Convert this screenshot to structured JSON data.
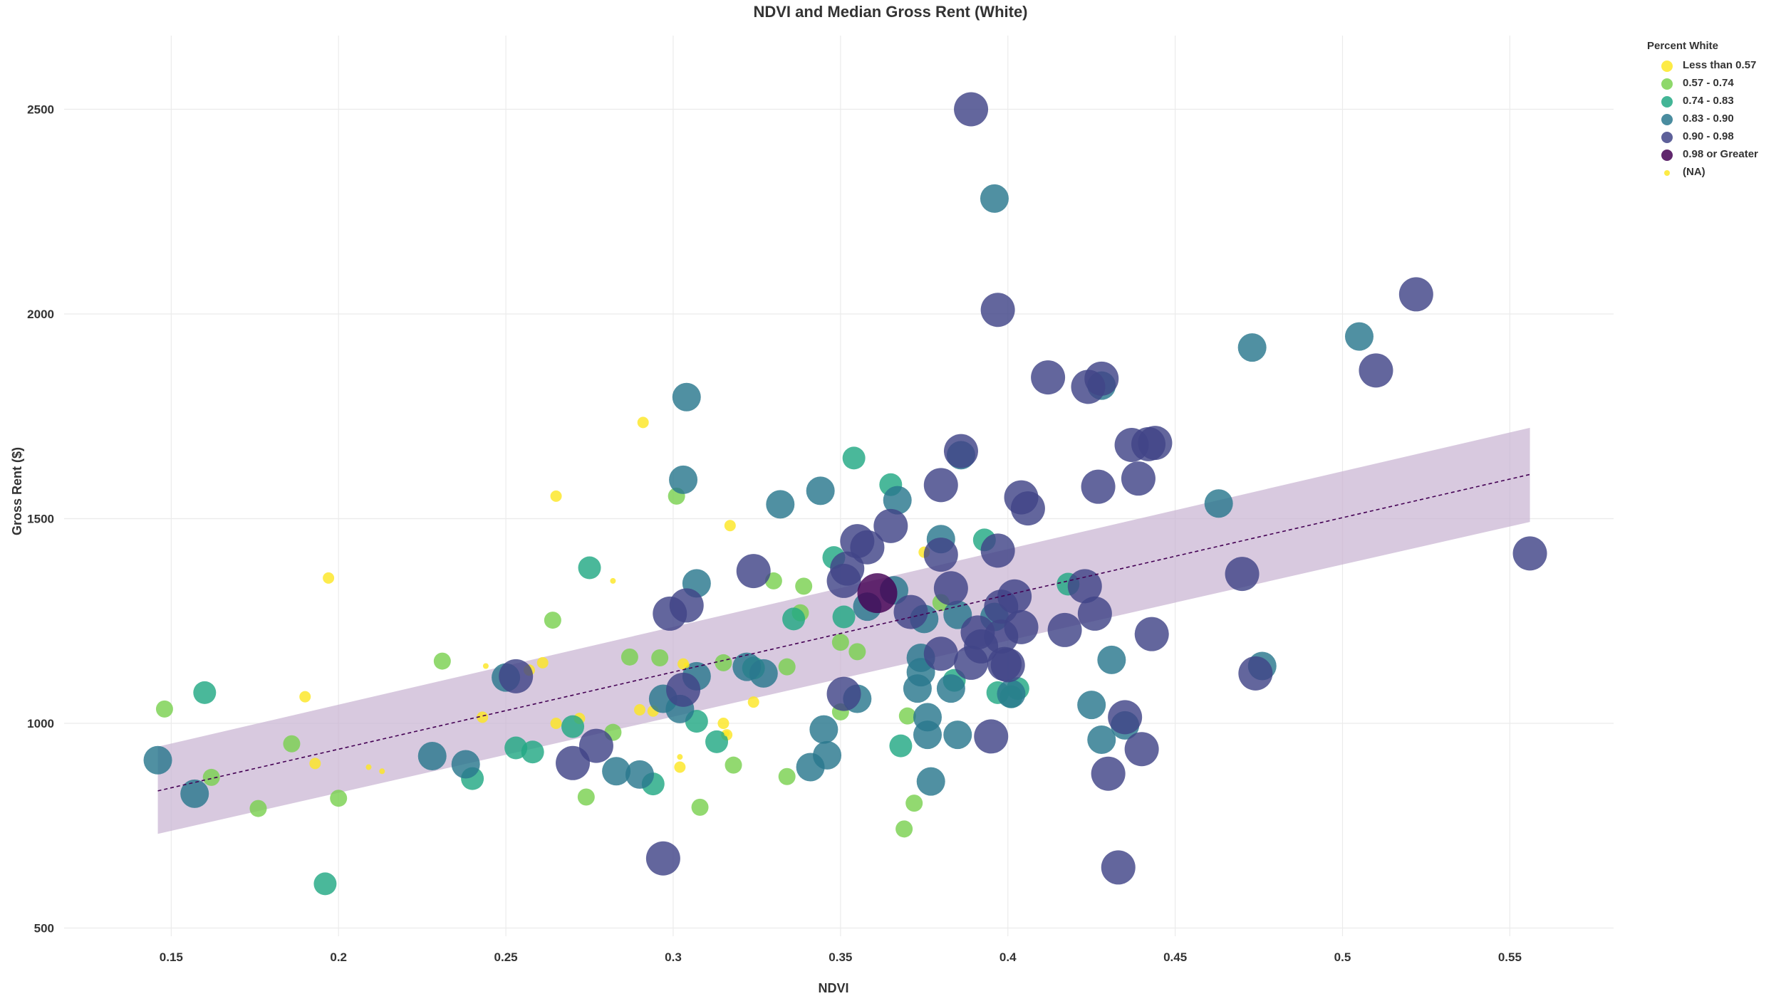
{
  "chart_data": {
    "type": "scatter",
    "title": "NDVI and Median Gross Rent (White)",
    "xlabel": "NDVI",
    "ylabel": "Gross Rent ($)",
    "xlim": [
      0.118,
      0.581
    ],
    "ylim": [
      480,
      2680
    ],
    "x_ticks": [
      0.15,
      0.2,
      0.25,
      0.3,
      0.35,
      0.4,
      0.45,
      0.5,
      0.55
    ],
    "x_tick_labels": [
      "0.15",
      "0.2",
      "0.25",
      "0.3",
      "0.35",
      "0.4",
      "0.45",
      "0.5",
      "0.55"
    ],
    "y_ticks": [
      500,
      1000,
      1500,
      2000,
      2500
    ],
    "y_tick_labels": [
      "500",
      "1000",
      "1500",
      "2000",
      "2500"
    ],
    "grid": true,
    "legend": {
      "title": "Percent White",
      "position": "top-right",
      "items": [
        {
          "label": "Less than 0.57",
          "color": "#fde725",
          "size": 0
        },
        {
          "label": "0.57 - 0.74",
          "color": "#7ad151",
          "size": 1
        },
        {
          "label": "0.74 - 0.83",
          "color": "#22a884",
          "size": 2
        },
        {
          "label": "0.83 - 0.90",
          "color": "#2a788e",
          "size": 3
        },
        {
          "label": "0.90 - 0.98",
          "color": "#414487",
          "size": 4
        },
        {
          "label": "0.98 or Greater",
          "color": "#440154",
          "size": 5
        },
        {
          "label": "(NA)",
          "color": "#fde725",
          "size": -1
        }
      ]
    },
    "trend": {
      "type": "linear fit with confidence band",
      "x": [
        0.146,
        0.556
      ],
      "y": [
        835,
        1608
      ],
      "lower": [
        730,
        1492
      ],
      "upper": [
        943,
        1722
      ],
      "line_color": "#440154",
      "band_color": "#c7b2d1"
    },
    "series": [
      {
        "name": "Less than 0.57",
        "color": "#fde725",
        "size": 0,
        "points": [
          [
            0.19,
            1065
          ],
          [
            0.197,
            1355
          ],
          [
            0.257,
            1130
          ],
          [
            0.261,
            1148
          ],
          [
            0.265,
            1555
          ],
          [
            0.291,
            1735
          ],
          [
            0.29,
            1033
          ],
          [
            0.294,
            1030
          ],
          [
            0.302,
            893
          ],
          [
            0.315,
            1000
          ],
          [
            0.316,
            972
          ],
          [
            0.317,
            1483
          ],
          [
            0.324,
            1052
          ],
          [
            0.375,
            1418
          ],
          [
            0.303,
            1145
          ],
          [
            0.265,
            1000
          ],
          [
            0.272,
            1012
          ],
          [
            0.193,
            902
          ],
          [
            0.243,
            1015
          ]
        ]
      },
      {
        "name": "0.57 - 0.74",
        "color": "#7ad151",
        "size": 1,
        "points": [
          [
            0.148,
            1035
          ],
          [
            0.162,
            868
          ],
          [
            0.176,
            792
          ],
          [
            0.186,
            950
          ],
          [
            0.2,
            817
          ],
          [
            0.231,
            1152
          ],
          [
            0.264,
            1252
          ],
          [
            0.274,
            820
          ],
          [
            0.282,
            978
          ],
          [
            0.287,
            1162
          ],
          [
            0.296,
            1160
          ],
          [
            0.301,
            1555
          ],
          [
            0.308,
            795
          ],
          [
            0.318,
            898
          ],
          [
            0.315,
            1148
          ],
          [
            0.33,
            1348
          ],
          [
            0.334,
            870
          ],
          [
            0.334,
            1138
          ],
          [
            0.338,
            1270
          ],
          [
            0.339,
            1335
          ],
          [
            0.35,
            1198
          ],
          [
            0.35,
            1028
          ],
          [
            0.355,
            1175
          ],
          [
            0.369,
            742
          ],
          [
            0.372,
            805
          ],
          [
            0.37,
            1018
          ],
          [
            0.38,
            1295
          ]
        ]
      },
      {
        "name": "0.74 - 0.83",
        "color": "#22a884",
        "size": 2,
        "points": [
          [
            0.16,
            1075
          ],
          [
            0.196,
            608
          ],
          [
            0.24,
            865
          ],
          [
            0.253,
            940
          ],
          [
            0.258,
            930
          ],
          [
            0.27,
            992
          ],
          [
            0.275,
            1380
          ],
          [
            0.294,
            852
          ],
          [
            0.307,
            1005
          ],
          [
            0.313,
            955
          ],
          [
            0.324,
            1135
          ],
          [
            0.336,
            1255
          ],
          [
            0.348,
            1405
          ],
          [
            0.351,
            1260
          ],
          [
            0.354,
            1648
          ],
          [
            0.365,
            1583
          ],
          [
            0.368,
            945
          ],
          [
            0.384,
            1105
          ],
          [
            0.393,
            1448
          ],
          [
            0.397,
            1075
          ],
          [
            0.401,
            1065
          ],
          [
            0.403,
            1085
          ],
          [
            0.418,
            1340
          ]
        ]
      },
      {
        "name": "0.83 - 0.90",
        "color": "#2a788e",
        "size": 3,
        "points": [
          [
            0.146,
            910
          ],
          [
            0.157,
            828
          ],
          [
            0.228,
            920
          ],
          [
            0.238,
            900
          ],
          [
            0.25,
            1112
          ],
          [
            0.283,
            883
          ],
          [
            0.29,
            875
          ],
          [
            0.297,
            1060
          ],
          [
            0.302,
            1035
          ],
          [
            0.303,
            1595
          ],
          [
            0.304,
            1797
          ],
          [
            0.307,
            1342
          ],
          [
            0.307,
            1115
          ],
          [
            0.322,
            1138
          ],
          [
            0.327,
            1122
          ],
          [
            0.332,
            1535
          ],
          [
            0.341,
            893
          ],
          [
            0.344,
            1568
          ],
          [
            0.345,
            985
          ],
          [
            0.346,
            922
          ],
          [
            0.355,
            1060
          ],
          [
            0.358,
            1285
          ],
          [
            0.366,
            1325
          ],
          [
            0.367,
            1545
          ],
          [
            0.373,
            1085
          ],
          [
            0.374,
            1160
          ],
          [
            0.374,
            1125
          ],
          [
            0.375,
            1255
          ],
          [
            0.376,
            1015
          ],
          [
            0.376,
            972
          ],
          [
            0.377,
            858
          ],
          [
            0.38,
            1450
          ],
          [
            0.383,
            1085
          ],
          [
            0.385,
            1265
          ],
          [
            0.385,
            972
          ],
          [
            0.386,
            1655
          ],
          [
            0.396,
            2282
          ],
          [
            0.396,
            1260
          ],
          [
            0.401,
            1072
          ],
          [
            0.425,
            1045
          ],
          [
            0.428,
            960
          ],
          [
            0.428,
            1825
          ],
          [
            0.431,
            1155
          ],
          [
            0.435,
            995
          ],
          [
            0.463,
            1537
          ],
          [
            0.473,
            1918
          ],
          [
            0.476,
            1140
          ],
          [
            0.505,
            1945
          ]
        ]
      },
      {
        "name": "0.90 - 0.98",
        "color": "#414487",
        "size": 4,
        "points": [
          [
            0.253,
            1115
          ],
          [
            0.27,
            903
          ],
          [
            0.277,
            945
          ],
          [
            0.297,
            670
          ],
          [
            0.299,
            1268
          ],
          [
            0.303,
            1082
          ],
          [
            0.304,
            1288
          ],
          [
            0.324,
            1372
          ],
          [
            0.351,
            1072
          ],
          [
            0.351,
            1348
          ],
          [
            0.352,
            1378
          ],
          [
            0.355,
            1445
          ],
          [
            0.358,
            1430
          ],
          [
            0.365,
            1482
          ],
          [
            0.371,
            1272
          ],
          [
            0.38,
            1582
          ],
          [
            0.38,
            1170
          ],
          [
            0.38,
            1412
          ],
          [
            0.383,
            1330
          ],
          [
            0.386,
            1665
          ],
          [
            0.389,
            2500
          ],
          [
            0.389,
            1148
          ],
          [
            0.391,
            1222
          ],
          [
            0.392,
            1188
          ],
          [
            0.395,
            968
          ],
          [
            0.397,
            1422
          ],
          [
            0.397,
            2010
          ],
          [
            0.398,
            1212
          ],
          [
            0.398,
            1285
          ],
          [
            0.399,
            1145
          ],
          [
            0.4,
            1142
          ],
          [
            0.402,
            1310
          ],
          [
            0.404,
            1552
          ],
          [
            0.404,
            1235
          ],
          [
            0.406,
            1525
          ],
          [
            0.412,
            1845
          ],
          [
            0.417,
            1228
          ],
          [
            0.423,
            1335
          ],
          [
            0.424,
            1822
          ],
          [
            0.426,
            1268
          ],
          [
            0.427,
            1578
          ],
          [
            0.428,
            1842
          ],
          [
            0.43,
            877
          ],
          [
            0.433,
            648
          ],
          [
            0.435,
            1015
          ],
          [
            0.437,
            1680
          ],
          [
            0.439,
            1598
          ],
          [
            0.44,
            937
          ],
          [
            0.443,
            1218
          ],
          [
            0.442,
            1682
          ],
          [
            0.444,
            1685
          ],
          [
            0.47,
            1365
          ],
          [
            0.474,
            1122
          ],
          [
            0.51,
            1862
          ],
          [
            0.522,
            2048
          ],
          [
            0.556,
            1415
          ]
        ]
      },
      {
        "name": "0.98 or Greater",
        "color": "#440154",
        "size": 5,
        "points": [
          [
            0.361,
            1318
          ]
        ]
      },
      {
        "name": "(NA)",
        "color": "#fde725",
        "size": -1,
        "points": [
          [
            0.209,
            893
          ],
          [
            0.213,
            883
          ],
          [
            0.244,
            1140
          ],
          [
            0.282,
            1348
          ],
          [
            0.302,
            918
          ],
          [
            0.304,
            1142
          ],
          [
            0.316,
            975
          ]
        ]
      }
    ]
  }
}
